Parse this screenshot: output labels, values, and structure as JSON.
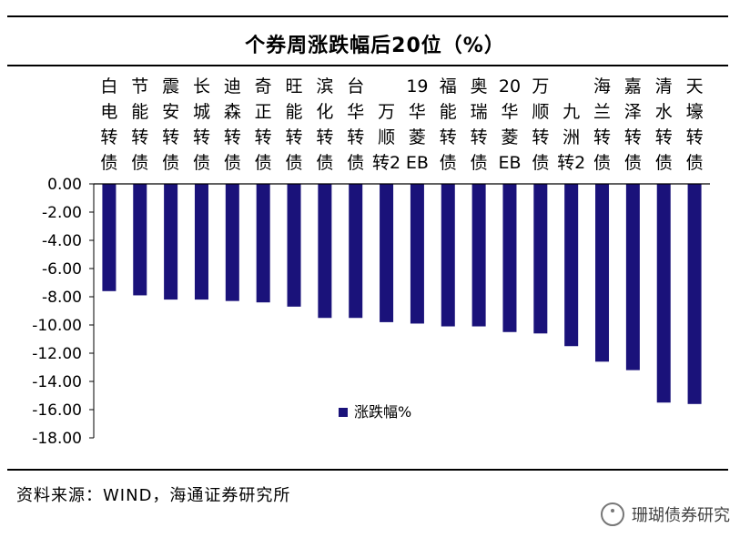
{
  "title": "个券周涨跌幅后20位（%）",
  "source": "资料来源：WIND，海通证券研究所",
  "watermark": "珊瑚债券研究",
  "colors": {
    "bar": "#1a127a",
    "axis": "#000000"
  },
  "chart_data": {
    "type": "bar",
    "title": "个券周涨跌幅后20位（%）",
    "categories": [
      [
        "白",
        "电",
        "转",
        "债"
      ],
      [
        "节",
        "能",
        "转",
        "债"
      ],
      [
        "震",
        "安",
        "转",
        "债"
      ],
      [
        "长",
        "城",
        "转",
        "债"
      ],
      [
        "迪",
        "森",
        "转",
        "债"
      ],
      [
        "奇",
        "正",
        "转",
        "债"
      ],
      [
        "旺",
        "能",
        "转",
        "债"
      ],
      [
        "滨",
        "化",
        "转",
        "债"
      ],
      [
        "台",
        "华",
        "转",
        "债"
      ],
      [
        "万",
        "顺",
        "转2"
      ],
      [
        "19",
        "华",
        "菱",
        "EB"
      ],
      [
        "福",
        "能",
        "转",
        "债"
      ],
      [
        "奥",
        "瑞",
        "转",
        "债"
      ],
      [
        "20",
        "华",
        "菱",
        "EB"
      ],
      [
        "万",
        "顺",
        "转",
        "债"
      ],
      [
        "九",
        "洲",
        "转2"
      ],
      [
        "海",
        "兰",
        "转",
        "债"
      ],
      [
        "嘉",
        "泽",
        "转",
        "债"
      ],
      [
        "清",
        "水",
        "转",
        "债"
      ],
      [
        "天",
        "壕",
        "转",
        "债"
      ]
    ],
    "series": [
      {
        "name": "涨跌幅%",
        "values": [
          -7.6,
          -7.9,
          -8.2,
          -8.2,
          -8.3,
          -8.4,
          -8.7,
          -9.5,
          -9.5,
          -9.8,
          -9.9,
          -10.1,
          -10.1,
          -10.5,
          -10.6,
          -11.5,
          -12.6,
          -13.2,
          -15.5,
          -15.6
        ]
      }
    ],
    "yticks": [
      "0.00",
      "-2.00",
      "-4.00",
      "-6.00",
      "-8.00",
      "-10.00",
      "-12.00",
      "-14.00",
      "-16.00",
      "-18.00"
    ],
    "ylim": [
      -18,
      0
    ],
    "legend": {
      "label": "涨跌幅%",
      "position": "inside-lower-left"
    },
    "xlabel": "",
    "ylabel": "",
    "grid": false
  }
}
